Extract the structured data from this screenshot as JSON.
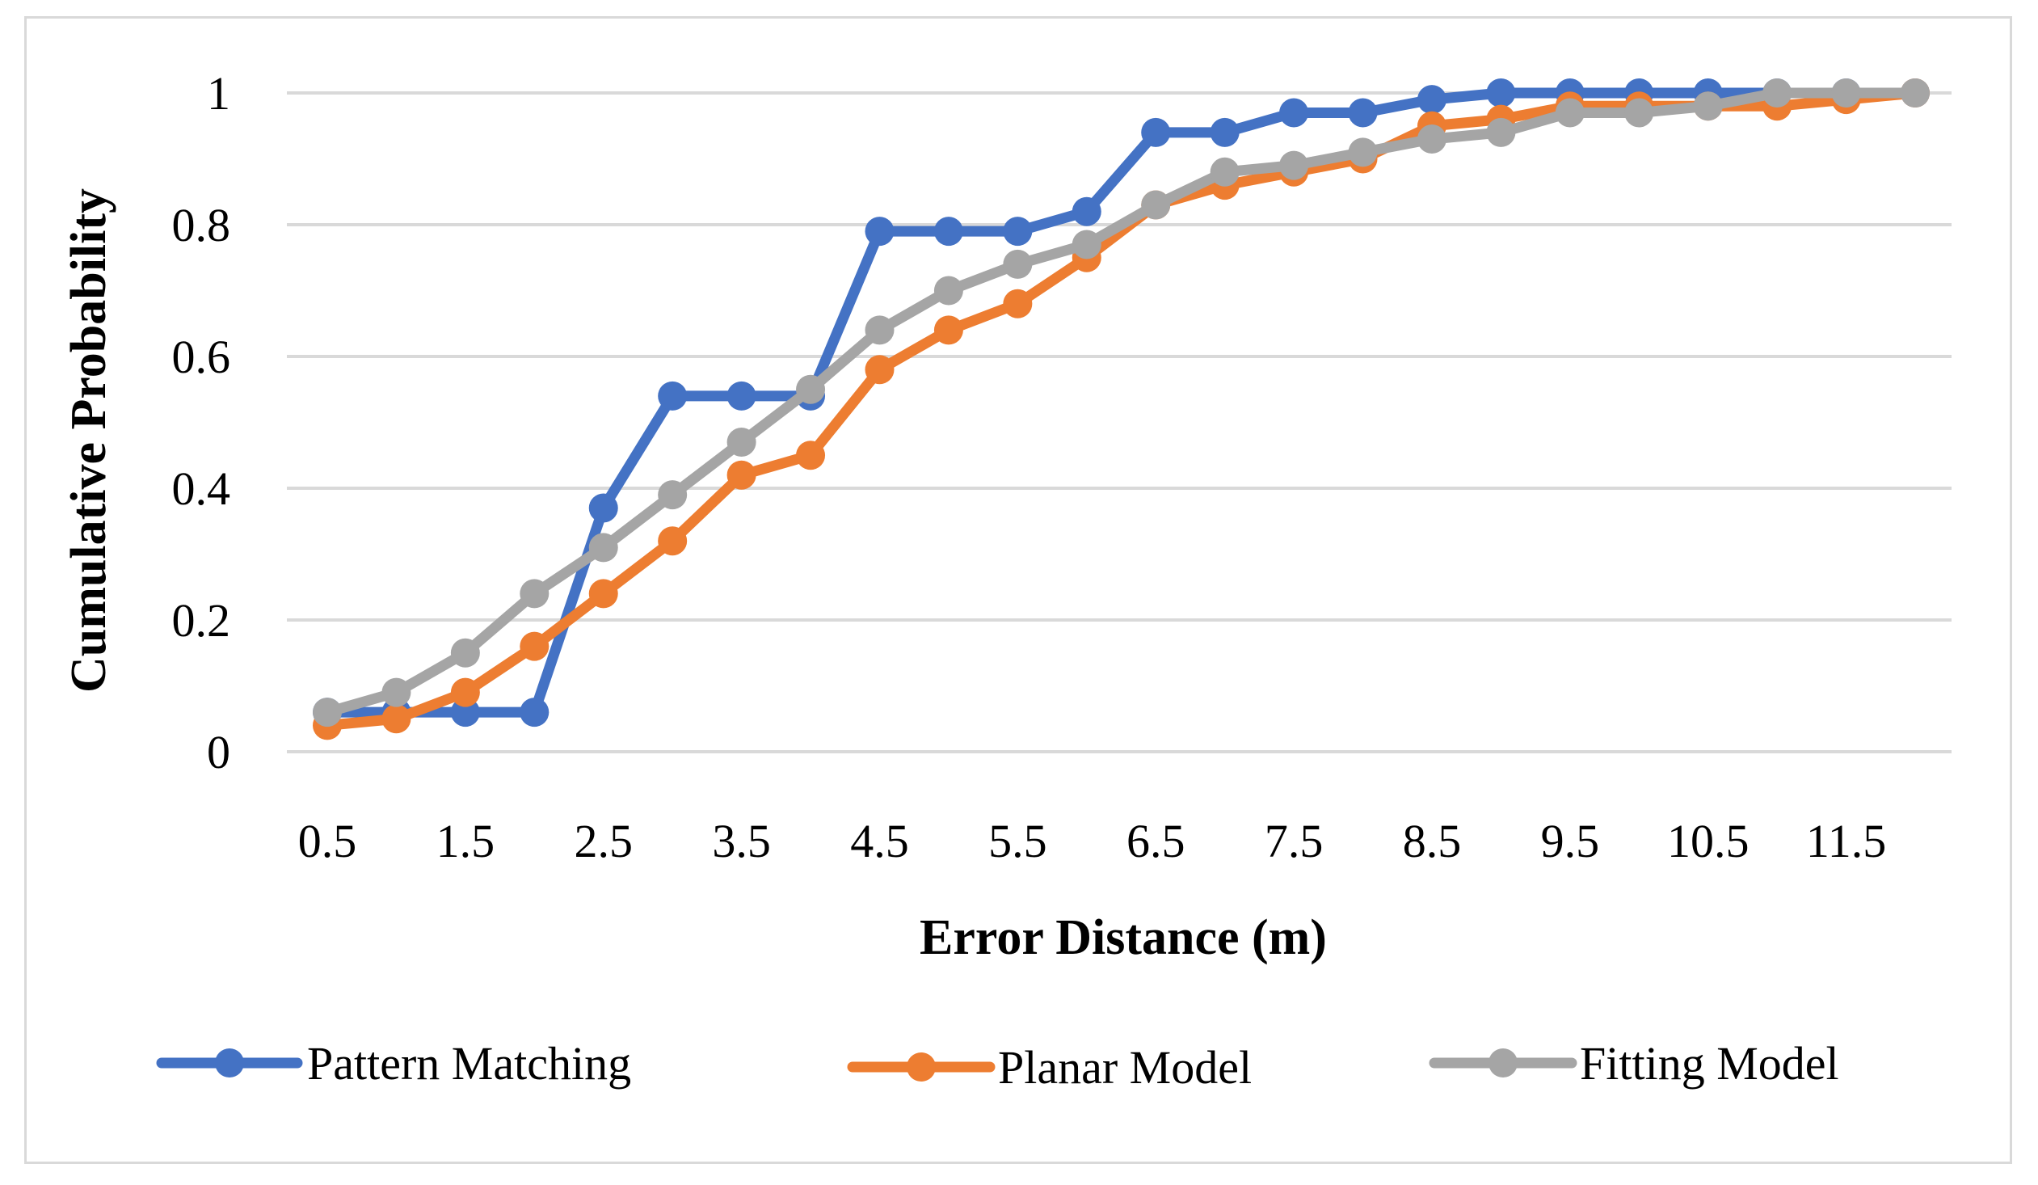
{
  "chart_data": {
    "type": "line",
    "title": "",
    "xlabel": "Error Distance (m)",
    "ylabel": "Cumulative Probability",
    "ylim": [
      0,
      1
    ],
    "yticks": [
      0,
      0.2,
      0.4,
      0.6,
      0.8,
      1
    ],
    "ytick_labels": [
      "0",
      "0.2",
      "0.4",
      "0.6",
      "0.8",
      "1"
    ],
    "x": [
      0.5,
      1,
      1.5,
      2,
      2.5,
      3,
      3.5,
      4,
      4.5,
      5,
      5.5,
      6,
      6.5,
      7,
      7.5,
      8,
      8.5,
      9,
      9.5,
      10,
      10.5,
      11,
      11.5,
      12
    ],
    "xtick_labels": [
      "0.5",
      "1.5",
      "2.5",
      "3.5",
      "4.5",
      "5.5",
      "6.5",
      "7.5",
      "8.5",
      "9.5",
      "10.5",
      "11.5"
    ],
    "grid": true,
    "legend_position": "bottom",
    "series": [
      {
        "name": "Pattern Matching",
        "color": "#4472C4",
        "values": [
          0.06,
          0.06,
          0.06,
          0.06,
          0.37,
          0.54,
          0.54,
          0.54,
          0.79,
          0.79,
          0.79,
          0.82,
          0.94,
          0.94,
          0.97,
          0.97,
          0.99,
          1.0,
          1.0,
          1.0,
          1.0,
          1.0,
          1.0,
          1.0
        ]
      },
      {
        "name": "Planar Model",
        "color": "#ED7D31",
        "values": [
          0.04,
          0.05,
          0.09,
          0.16,
          0.24,
          0.32,
          0.42,
          0.45,
          0.58,
          0.64,
          0.68,
          0.75,
          0.83,
          0.86,
          0.88,
          0.9,
          0.95,
          0.96,
          0.98,
          0.98,
          0.98,
          0.98,
          0.99,
          1.0
        ]
      },
      {
        "name": "Fitting Model",
        "color": "#A5A5A5",
        "values": [
          0.06,
          0.09,
          0.15,
          0.24,
          0.31,
          0.39,
          0.47,
          0.55,
          0.64,
          0.7,
          0.74,
          0.77,
          0.83,
          0.88,
          0.89,
          0.91,
          0.93,
          0.94,
          0.97,
          0.97,
          0.98,
          1.0,
          1.0,
          1.0
        ]
      }
    ]
  }
}
